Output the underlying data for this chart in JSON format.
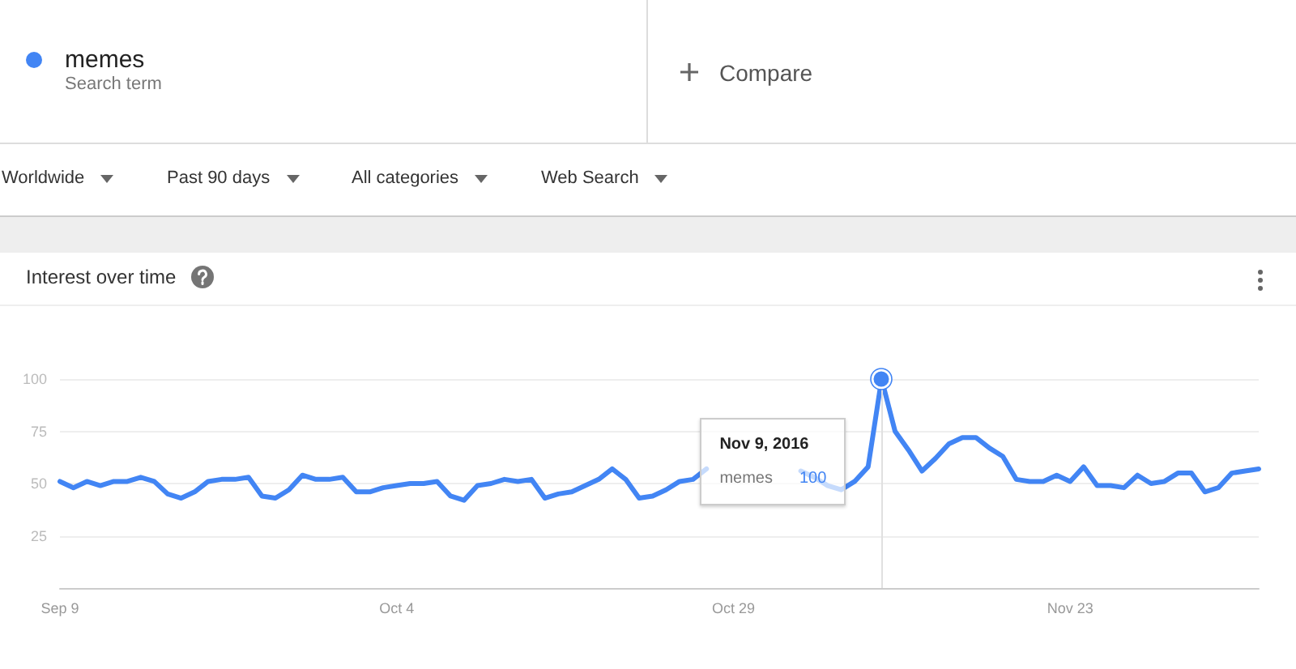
{
  "chart_data": {
    "type": "line",
    "title": "Interest over time",
    "x": [
      "2016-09-09",
      "2016-09-10",
      "2016-09-11",
      "2016-09-12",
      "2016-09-13",
      "2016-09-14",
      "2016-09-15",
      "2016-09-16",
      "2016-09-17",
      "2016-09-18",
      "2016-09-19",
      "2016-09-20",
      "2016-09-21",
      "2016-09-22",
      "2016-09-23",
      "2016-09-24",
      "2016-09-25",
      "2016-09-26",
      "2016-09-27",
      "2016-09-28",
      "2016-09-29",
      "2016-09-30",
      "2016-10-01",
      "2016-10-02",
      "2016-10-03",
      "2016-10-04",
      "2016-10-05",
      "2016-10-06",
      "2016-10-07",
      "2016-10-08",
      "2016-10-09",
      "2016-10-10",
      "2016-10-11",
      "2016-10-12",
      "2016-10-13",
      "2016-10-14",
      "2016-10-15",
      "2016-10-16",
      "2016-10-17",
      "2016-10-18",
      "2016-10-19",
      "2016-10-20",
      "2016-10-21",
      "2016-10-22",
      "2016-10-23",
      "2016-10-24",
      "2016-10-25",
      "2016-10-26",
      "2016-10-27",
      "2016-10-28",
      "2016-10-29",
      "2016-10-30",
      "2016-10-31",
      "2016-11-01",
      "2016-11-02",
      "2016-11-03",
      "2016-11-04",
      "2016-11-05",
      "2016-11-06",
      "2016-11-07",
      "2016-11-08",
      "2016-11-09",
      "2016-11-10",
      "2016-11-11",
      "2016-11-12",
      "2016-11-13",
      "2016-11-14",
      "2016-11-15",
      "2016-11-16",
      "2016-11-17",
      "2016-11-18",
      "2016-11-19",
      "2016-11-20",
      "2016-11-21",
      "2016-11-22",
      "2016-11-23",
      "2016-11-24",
      "2016-11-25",
      "2016-11-26",
      "2016-11-27",
      "2016-11-28",
      "2016-11-29",
      "2016-11-30",
      "2016-12-01",
      "2016-12-02",
      "2016-12-03",
      "2016-12-04",
      "2016-12-05",
      "2016-12-06",
      "2016-12-07"
    ],
    "series": [
      {
        "name": "memes",
        "color": "#4285f4",
        "values": [
          51,
          48,
          51,
          49,
          51,
          51,
          53,
          51,
          45,
          43,
          46,
          51,
          52,
          52,
          53,
          44,
          43,
          47,
          54,
          52,
          52,
          53,
          46,
          46,
          48,
          49,
          50,
          50,
          51,
          44,
          42,
          49,
          50,
          52,
          51,
          52,
          43,
          45,
          46,
          49,
          52,
          57,
          52,
          43,
          44,
          47,
          51,
          52,
          57,
          null,
          null,
          null,
          null,
          null,
          null,
          56,
          53,
          49,
          47,
          51,
          58,
          100,
          75,
          66,
          56,
          62,
          69,
          72,
          72,
          67,
          63,
          52,
          51,
          51,
          54,
          51,
          58,
          49,
          49,
          48,
          54,
          50,
          51,
          55,
          55,
          46,
          48,
          55,
          56,
          57
        ]
      }
    ],
    "xlim": [
      "2016-09-09",
      "2016-12-07"
    ],
    "xticks": [
      {
        "value": "2016-09-09",
        "label": "Sep 9"
      },
      {
        "value": "2016-10-04",
        "label": "Oct 4"
      },
      {
        "value": "2016-10-29",
        "label": "Oct 29"
      },
      {
        "value": "2016-11-23",
        "label": "Nov 23"
      }
    ],
    "ylim": [
      0,
      100
    ],
    "yticks": [
      25,
      50,
      75,
      100
    ],
    "grid": "y",
    "legend": "top left",
    "marker": "none",
    "line_style": "solid",
    "ref_lines": [
      {
        "axis": "x",
        "value": "2016-11-09",
        "color": "#e0e0e0"
      }
    ],
    "annotations": [
      "Search term",
      "Compare",
      "Worldwide",
      "Past 90 days",
      "All categories",
      "Web Search",
      "Nov 9, 2016",
      "100"
    ]
  }
}
